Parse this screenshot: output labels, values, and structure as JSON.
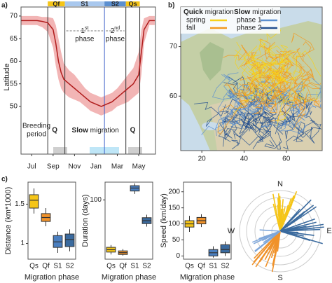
{
  "chart_data": [
    {
      "type": "line",
      "panel_label": "a)",
      "ylabel": "Latitude",
      "x": [
        -1,
        -0.5,
        0,
        0.5,
        1,
        1.5,
        2,
        2.25,
        2.5,
        2.75,
        3,
        3.5,
        4,
        4.5,
        5,
        5.5,
        6,
        6.5,
        7,
        7.5,
        8,
        8.5,
        9,
        9.5,
        10,
        10.25,
        10.5,
        11,
        11.5
      ],
      "series": [
        {
          "name": "mean",
          "color": "#b01c1c",
          "values": [
            69,
            69,
            69,
            69,
            68.8,
            68.5,
            67,
            64,
            60,
            57.5,
            56,
            55,
            54,
            53,
            52,
            51,
            50.5,
            50,
            50.5,
            51,
            52,
            53,
            54,
            55,
            57,
            62,
            67,
            69,
            69
          ],
          "lower": [
            68,
            68,
            68,
            68,
            67.5,
            66.5,
            63,
            59,
            56,
            54,
            53,
            52,
            51.5,
            51,
            50,
            49,
            48.5,
            48,
            48.5,
            49,
            50,
            50.5,
            51,
            52,
            53,
            57,
            64,
            68,
            68
          ],
          "upper": [
            70,
            70,
            70,
            70,
            69.8,
            69.8,
            69.5,
            68,
            65,
            62,
            59.5,
            58,
            57,
            55.5,
            54,
            53,
            52.5,
            52,
            52.5,
            53,
            54,
            55.5,
            57,
            58.5,
            62,
            67,
            69.5,
            70,
            70
          ],
          "band_color": "#f2b5b5"
        }
      ],
      "xlim": [
        -1,
        11.57
      ],
      "ylim": [
        41,
        72
      ],
      "xticks": [
        {
          "value": 0,
          "label": "Jul"
        },
        {
          "value": 2,
          "label": "Sep"
        },
        {
          "value": 4,
          "label": "Nov"
        },
        {
          "value": 6,
          "label": "Jan"
        },
        {
          "value": 8,
          "label": "Mar"
        },
        {
          "value": 10,
          "label": "May"
        }
      ],
      "yticks": [
        50,
        55,
        60,
        65,
        70
      ],
      "phases": [
        "Qf",
        "S1",
        "S2",
        "Qs"
      ],
      "phase_boundaries": [
        1.5,
        3.1,
        6.8,
        8.8,
        10.1
      ],
      "phase_colors": [
        "#f5c518",
        "#a9c8ee",
        "#5b8fd0",
        "#f5c518"
      ],
      "annotations": {
        "first": {
          "num": "1",
          "sup": "st",
          "word": "phase"
        },
        "second": {
          "num": "2",
          "sup": "nd",
          "word": "phase"
        },
        "breeding": [
          "Breeding",
          "period"
        ],
        "q_left": "Q",
        "q_right": "Q",
        "slow": {
          "bold": "Slow",
          "rest": " migration"
        }
      }
    },
    {
      "type": "map",
      "panel_label": "b)",
      "xlim": [
        10,
        77
      ],
      "ylim": [
        49,
        78
      ],
      "xticks": [
        20,
        40,
        60
      ],
      "yticks": [
        60,
        70
      ],
      "legend": [
        {
          "bold": "Quick",
          "rest": " migration",
          "items": [
            {
              "name": "spring",
              "color": "#f7d11a"
            },
            {
              "name": "fall",
              "color": "#f39a1e"
            }
          ]
        },
        {
          "bold": "Slow",
          "rest": " migration",
          "items": [
            {
              "name": "phase 1",
              "color": "#5b8fd0"
            },
            {
              "name": "phase 2",
              "color": "#24508f"
            }
          ]
        }
      ]
    },
    {
      "type": "box",
      "panel_label": "c)",
      "ylabel": "Distance (km*1000)",
      "xlabel": "Migration phase",
      "categories": [
        "Qs",
        "Qf",
        "S1",
        "S2"
      ],
      "colors": [
        "#f5c518",
        "#f0922a",
        "#4a7fc0",
        "#3a6a9e"
      ],
      "low": [
        1.38,
        1.22,
        0.88,
        0.9
      ],
      "q1": [
        1.45,
        1.28,
        0.95,
        0.96
      ],
      "median": [
        1.55,
        1.33,
        1.02,
        1.05
      ],
      "q3": [
        1.62,
        1.38,
        1.1,
        1.12
      ],
      "high": [
        1.7,
        1.45,
        1.15,
        1.18
      ],
      "ylim": [
        0.8,
        1.78
      ],
      "yticks": [
        1.0,
        1.5
      ]
    },
    {
      "type": "box",
      "ylabel": "Duration (days)",
      "xlabel": "Migration phase",
      "categories": [
        "Qs",
        "Qf",
        "S1",
        "S2"
      ],
      "colors": [
        "#f5c518",
        "#f0922a",
        "#4a7fc0",
        "#3a6a9e"
      ],
      "low": [
        8,
        6,
        110,
        55
      ],
      "q1": [
        12,
        8,
        115,
        60
      ],
      "median": [
        16,
        11,
        120,
        65
      ],
      "q3": [
        20,
        14,
        124,
        70
      ],
      "high": [
        24,
        17,
        128,
        75
      ],
      "ylim": [
        0,
        130
      ],
      "yticks": [
        100
      ]
    },
    {
      "type": "box",
      "ylabel": "Speed (km/day)",
      "xlabel": "Migration phase",
      "categories": [
        "Qs",
        "Qf",
        "S1",
        "S2"
      ],
      "colors": [
        "#f5c518",
        "#f0922a",
        "#4a7fc0",
        "#3a6a9e"
      ],
      "low": [
        75,
        90,
        -5,
        0
      ],
      "q1": [
        90,
        100,
        0,
        10
      ],
      "median": [
        100,
        110,
        10,
        20
      ],
      "q3": [
        110,
        120,
        20,
        35
      ],
      "high": [
        125,
        130,
        30,
        45
      ],
      "ylim": [
        -10,
        230
      ],
      "yticks": [
        0,
        50,
        100,
        150,
        200
      ]
    },
    {
      "type": "rose",
      "directions": [
        "N",
        "E",
        "S",
        "W"
      ]
    }
  ]
}
